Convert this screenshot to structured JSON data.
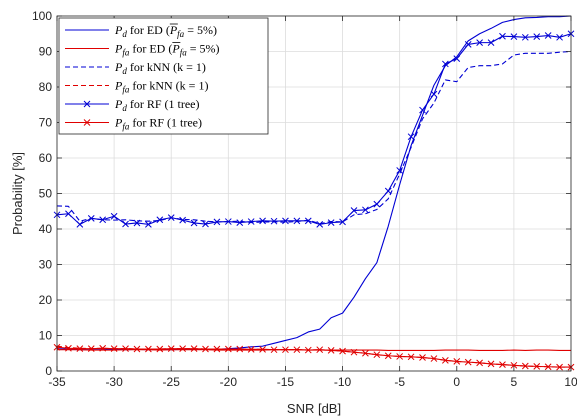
{
  "chart_data": {
    "type": "line",
    "xlabel": "SNR [dB]",
    "ylabel": "Probability [%]",
    "xlim": [
      -35,
      10
    ],
    "ylim": [
      0,
      100
    ],
    "x_ticks": [
      -35,
      -30,
      -25,
      -20,
      -15,
      -10,
      -5,
      0,
      5,
      10
    ],
    "y_ticks": [
      0,
      10,
      20,
      30,
      40,
      50,
      60,
      70,
      80,
      90,
      100
    ],
    "x_tick_labels": [
      "-35",
      "-30",
      "-25",
      "-20",
      "-15",
      "-10",
      "-5",
      "0",
      "5",
      "10"
    ],
    "y_tick_labels": [
      "0",
      "10",
      "20",
      "30",
      "40",
      "50",
      "60",
      "70",
      "80",
      "90",
      "100"
    ],
    "grid": true,
    "legend_position": "top-left",
    "x": [
      -35,
      -34,
      -33,
      -32,
      -31,
      -30,
      -29,
      -28,
      -27,
      -26,
      -25,
      -24,
      -23,
      -22,
      -21,
      -20,
      -19,
      -18,
      -17,
      -16,
      -15,
      -14,
      -13,
      -12,
      -11,
      -10,
      -9,
      -8,
      -7,
      -6,
      -5,
      -4,
      -3,
      -2,
      -1,
      0,
      1,
      2,
      3,
      4,
      5,
      6,
      7,
      8,
      9,
      10
    ],
    "series": [
      {
        "legend": {
          "var": "P",
          "sub": "d",
          "text": " for ED (",
          "bar": "P",
          "bar_sub": "fa",
          "tail": " = 5%)"
        },
        "color": "#0000d4",
        "style": "solid",
        "marker": "none",
        "values": [
          6.3,
          6.1,
          6.0,
          6.0,
          6.0,
          6.1,
          6.0,
          6.1,
          6.0,
          6.1,
          6.0,
          6.1,
          6.2,
          6.1,
          6.1,
          6.3,
          6.5,
          6.8,
          7.0,
          7.8,
          8.6,
          9.4,
          11.0,
          11.8,
          15.0,
          16.3,
          20.8,
          26.0,
          30.5,
          40.8,
          52.5,
          63.5,
          72.0,
          80.5,
          86.0,
          88.5,
          93.0,
          95.0,
          96.5,
          98.2,
          99.0,
          99.5,
          99.6,
          99.8,
          99.8,
          100.0
        ]
      },
      {
        "legend": {
          "var": "P",
          "sub": "fa",
          "text": " for ED (",
          "bar": "P",
          "bar_sub": "fa",
          "tail": " = 5%)"
        },
        "color": "#e00000",
        "style": "solid",
        "marker": "none",
        "values": [
          6.0,
          6.0,
          6.0,
          5.9,
          5.9,
          5.9,
          6.0,
          6.0,
          6.0,
          5.9,
          6.0,
          6.0,
          6.0,
          6.0,
          5.9,
          5.9,
          5.9,
          5.9,
          5.9,
          6.0,
          6.0,
          6.0,
          5.9,
          5.9,
          5.9,
          5.9,
          5.9,
          5.9,
          5.9,
          5.8,
          5.8,
          5.8,
          5.8,
          5.8,
          5.9,
          5.9,
          5.9,
          5.8,
          5.8,
          5.8,
          5.9,
          5.8,
          5.9,
          5.9,
          5.8,
          5.8
        ]
      },
      {
        "legend": {
          "var": "P",
          "sub": "d",
          "text": " for kNN (k = 1)"
        },
        "color": "#0000d4",
        "style": "dashed",
        "marker": "none",
        "values": [
          46.5,
          46.4,
          42.2,
          43.0,
          42.6,
          42.5,
          42.6,
          42.3,
          42.2,
          42.4,
          43.2,
          42.7,
          42.6,
          42.2,
          42.0,
          42.1,
          42.2,
          41.8,
          42.0,
          42.0,
          41.9,
          42.1,
          42.5,
          41.5,
          42.1,
          42.0,
          44.0,
          44.3,
          45.5,
          48.5,
          55.5,
          63.0,
          71.0,
          75.5,
          82.0,
          81.5,
          85.5,
          86.0,
          86.0,
          86.5,
          89.0,
          89.5,
          89.5,
          89.5,
          89.8,
          90.0
        ]
      },
      {
        "legend": {
          "var": "P",
          "sub": "fa",
          "text": " for kNN (k = 1)"
        },
        "color": "#e00000",
        "style": "dashed",
        "marker": "none",
        "values": [
          7.0,
          6.6,
          6.4,
          6.3,
          6.4,
          6.3,
          6.3,
          6.2,
          6.2,
          6.2,
          6.3,
          6.3,
          6.3,
          6.2,
          6.2,
          6.2,
          6.2,
          6.1,
          6.1,
          6.0,
          6.0,
          6.0,
          5.9,
          6.0,
          5.8,
          5.6,
          5.3,
          5.0,
          4.6,
          4.3,
          4.1,
          4.0,
          3.8,
          3.5,
          3.0,
          2.7,
          2.5,
          2.3,
          2.0,
          1.8,
          1.6,
          1.4,
          1.3,
          1.2,
          1.1,
          1.1
        ]
      },
      {
        "legend": {
          "var": "P",
          "sub": "d",
          "text": " for RF (1 tree)"
        },
        "color": "#0000d4",
        "style": "solid",
        "marker": "x",
        "values": [
          44.0,
          44.3,
          41.3,
          43.0,
          42.6,
          43.6,
          41.4,
          41.7,
          41.3,
          42.6,
          43.2,
          42.5,
          41.7,
          41.4,
          42.0,
          42.1,
          41.8,
          42.1,
          42.3,
          42.2,
          42.3,
          42.3,
          42.3,
          41.3,
          41.8,
          42.0,
          45.2,
          45.4,
          47.0,
          50.7,
          56.5,
          66.0,
          73.5,
          78.0,
          86.5,
          88.0,
          92.0,
          92.5,
          92.5,
          94.3,
          94.2,
          94.0,
          94.2,
          94.5,
          94.0,
          95.0
        ]
      },
      {
        "legend": {
          "var": "P",
          "sub": "fa",
          "text": " for RF (1 tree)"
        },
        "color": "#e00000",
        "style": "solid",
        "marker": "x",
        "values": [
          6.7,
          6.4,
          6.3,
          6.3,
          6.4,
          6.3,
          6.3,
          6.2,
          6.2,
          6.2,
          6.3,
          6.3,
          6.3,
          6.2,
          6.2,
          6.2,
          6.2,
          6.1,
          6.1,
          6.0,
          6.0,
          6.0,
          5.9,
          6.0,
          5.8,
          5.6,
          5.3,
          5.0,
          4.6,
          4.3,
          4.1,
          4.0,
          3.8,
          3.5,
          3.0,
          2.7,
          2.5,
          2.3,
          2.0,
          1.8,
          1.6,
          1.4,
          1.3,
          1.2,
          1.1,
          1.1
        ]
      }
    ]
  }
}
